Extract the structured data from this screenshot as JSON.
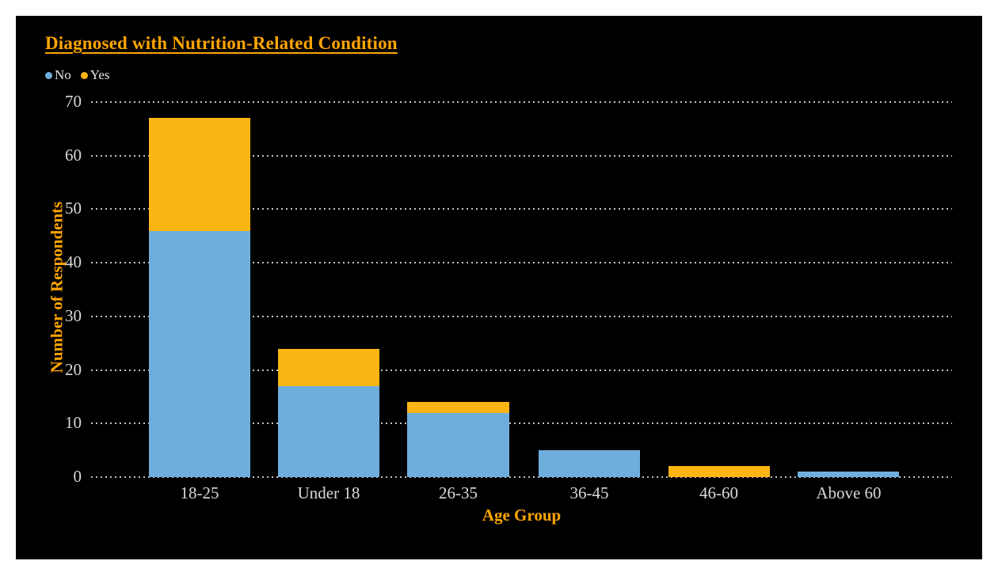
{
  "title": "Diagnosed with Nutrition-Related Condition",
  "legend": [
    {
      "label": "No",
      "color": "#6FAEDC"
    },
    {
      "label": "Yes",
      "color": "#FBB614"
    }
  ],
  "chart_data": {
    "type": "bar",
    "stacked": true,
    "title": "Diagnosed with Nutrition-Related Condition",
    "categories": [
      "18-25",
      "Under 18",
      "26-35",
      "36-45",
      "46-60",
      "Above 60"
    ],
    "series": [
      {
        "name": "No",
        "color": "#6FAEDC",
        "values": [
          46,
          17,
          12,
          5,
          0,
          1
        ]
      },
      {
        "name": "Yes",
        "color": "#FBB614",
        "values": [
          21,
          7,
          2,
          0,
          2,
          0
        ]
      }
    ],
    "xlabel": "Age Group",
    "ylabel": "Number of Respondents",
    "ylim": [
      0,
      70
    ],
    "yticks": [
      0,
      10,
      20,
      30,
      40,
      50,
      60,
      70
    ],
    "grid": "dotted-horizontal",
    "legend_position": "top-left",
    "background": "#000000"
  },
  "colors": {
    "page_margin": "#FFFFFF",
    "panel_background": "#000000",
    "accent_orange": "#FFA500",
    "tick_text": "#D9D9D9",
    "legend_text": "#E4E4E4"
  }
}
